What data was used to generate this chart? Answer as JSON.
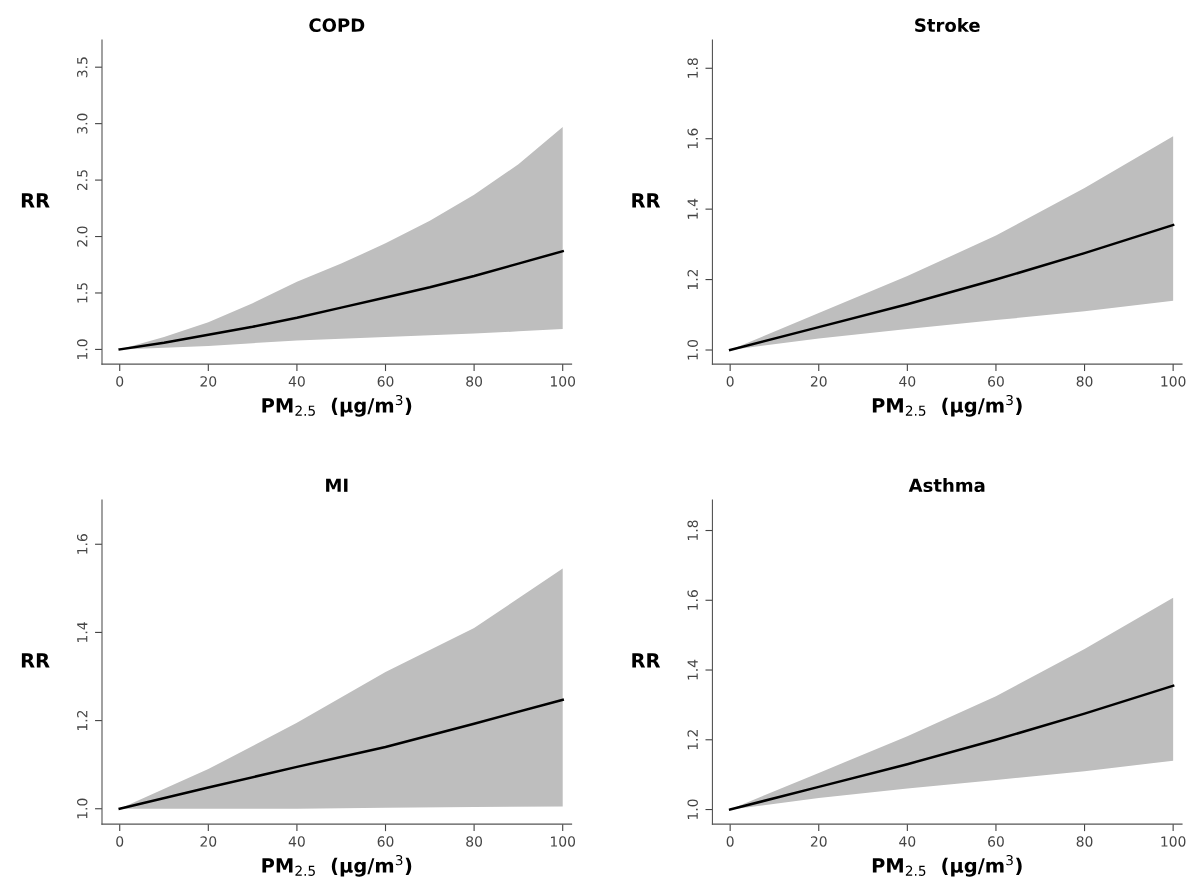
{
  "chart_data": [
    {
      "type": "line",
      "title": "COPD",
      "xlabel": "PM$_{2.5}$  (µg/m$^{3}$)",
      "ylabel": "RR",
      "x": [
        0,
        10,
        20,
        30,
        40,
        50,
        60,
        70,
        80,
        90,
        100
      ],
      "xlim": [
        -4,
        102
      ],
      "xticks": [
        0,
        20,
        40,
        60,
        80,
        100
      ],
      "ylim": [
        0.87,
        3.74
      ],
      "yticks": [
        {
          "value": 1.0,
          "label": "1.0"
        },
        {
          "value": 1.5,
          "label": "1.5"
        },
        {
          "value": 2.0,
          "label": "2.0"
        },
        {
          "value": 2.5,
          "label": "2.5"
        },
        {
          "value": 3.0,
          "label": "3.0"
        },
        {
          "value": 3.5,
          "label": "3.5"
        }
      ],
      "series": [
        {
          "color": "#000000",
          "values": [
            1.0,
            1.06,
            1.13,
            1.2,
            1.28,
            1.37,
            1.46,
            1.55,
            1.65,
            1.76,
            1.87
          ],
          "lower": [
            1.0,
            1.015,
            1.03,
            1.055,
            1.08,
            1.095,
            1.11,
            1.125,
            1.14,
            1.16,
            1.18
          ],
          "upper": [
            1.0,
            1.11,
            1.24,
            1.41,
            1.6,
            1.76,
            1.94,
            2.14,
            2.37,
            2.64,
            2.97
          ]
        }
      ]
    },
    {
      "type": "line",
      "title": "Stroke",
      "xlabel": "PM$_{2.5}$  (µg/m$^{3}$)",
      "ylabel": "RR",
      "x": [
        0,
        20,
        40,
        60,
        80,
        100
      ],
      "xlim": [
        -4,
        102
      ],
      "xticks": [
        0,
        20,
        40,
        60,
        80,
        100
      ],
      "ylim": [
        0.96,
        1.88
      ],
      "yticks": [
        {
          "value": 1.0,
          "label": "1.0"
        },
        1.2,
        1.4,
        1.6,
        1.8
      ],
      "series": [
        {
          "color": "#000000",
          "values": [
            1.0,
            1.065,
            1.13,
            1.2,
            1.275,
            1.355
          ],
          "lower": [
            1.0,
            1.033,
            1.06,
            1.085,
            1.11,
            1.14
          ],
          "upper": [
            1.0,
            1.105,
            1.21,
            1.325,
            1.46,
            1.607
          ]
        }
      ]
    },
    {
      "type": "line",
      "title": "MI",
      "xlabel": "PM$_{2.5}$  (µg/m$^{3}$)",
      "ylabel": "RR",
      "x": [
        0,
        20,
        40,
        60,
        80,
        100
      ],
      "xlim": [
        -4,
        102
      ],
      "xticks": [
        0,
        20,
        40,
        60,
        80,
        100
      ],
      "ylim": [
        0.965,
        1.7
      ],
      "yticks": [
        {
          "value": 1.0,
          "label": "1.0"
        },
        1.2,
        1.4,
        1.6
      ],
      "series": [
        {
          "color": "#000000",
          "values": [
            1.0,
            1.048,
            1.095,
            1.14,
            1.193,
            1.247
          ],
          "lower": [
            1.0,
            1.0,
            1.0,
            1.002,
            1.004,
            1.005
          ],
          "upper": [
            1.0,
            1.09,
            1.195,
            1.31,
            1.41,
            1.545
          ]
        }
      ]
    },
    {
      "type": "line",
      "title": "Asthma",
      "xlabel": "PM$_{2.5}$  (µg/m$^{3}$)",
      "ylabel": "RR",
      "x": [
        0,
        20,
        40,
        60,
        80,
        100
      ],
      "xlim": [
        -4,
        102
      ],
      "xticks": [
        0,
        20,
        40,
        60,
        80,
        100
      ],
      "ylim": [
        0.958,
        1.887
      ],
      "yticks": [
        {
          "value": 1.0,
          "label": "1.0"
        },
        1.2,
        1.4,
        1.6,
        1.8
      ],
      "series": [
        {
          "color": "#000000",
          "values": [
            1.0,
            1.065,
            1.13,
            1.2,
            1.275,
            1.355
          ],
          "lower": [
            1.0,
            1.033,
            1.06,
            1.085,
            1.11,
            1.14
          ],
          "upper": [
            1.0,
            1.105,
            1.21,
            1.325,
            1.46,
            1.607
          ]
        }
      ]
    }
  ]
}
